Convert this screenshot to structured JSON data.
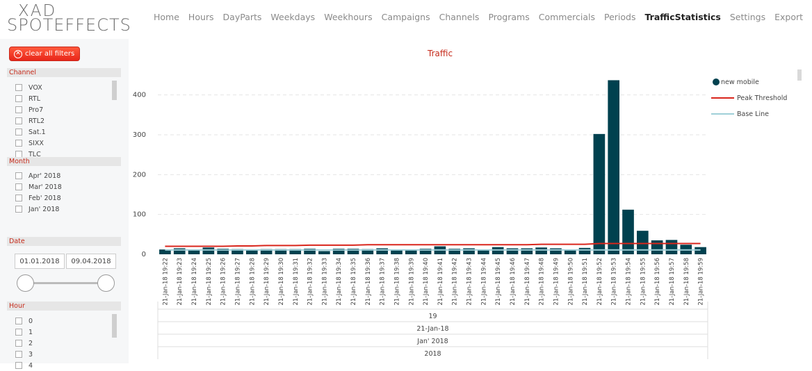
{
  "logo": {
    "top": "XAD",
    "bottom": "SPOTEFFECTS"
  },
  "nav": [
    {
      "label": "Home"
    },
    {
      "label": "Hours"
    },
    {
      "label": "DayParts"
    },
    {
      "label": "Weekdays"
    },
    {
      "label": "Weekhours"
    },
    {
      "label": "Campaigns"
    },
    {
      "label": "Channels"
    },
    {
      "label": "Programs"
    },
    {
      "label": "Commercials"
    },
    {
      "label": "Periods"
    },
    {
      "label": "TrafficStatistics",
      "active": true
    },
    {
      "label": "Settings"
    },
    {
      "label": "Export"
    }
  ],
  "sidebar": {
    "clear_label": "clear all filters",
    "channel_title": "Channel",
    "channels": [
      "VOX",
      "RTL",
      "Pro7",
      "RTL2",
      "Sat.1",
      "SIXX",
      "TLC"
    ],
    "month_title": "Month",
    "months": [
      "Apr' 2018",
      "Mar' 2018",
      "Feb' 2018",
      "Jan' 2018"
    ],
    "date_title": "Date",
    "date_from": "01.01.2018",
    "date_to": "09.04.2018",
    "hour_title": "Hour",
    "hours": [
      "0",
      "1",
      "2",
      "3",
      "4"
    ]
  },
  "chart_data": {
    "type": "bar",
    "title": "Traffic",
    "categories": [
      "21-Jan-18 19:22",
      "21-Jan-18 19:23",
      "21-Jan-18 19:24",
      "21-Jan-18 19:25",
      "21-Jan-18 19:26",
      "21-Jan-18 19:27",
      "21-Jan-18 19:28",
      "21-Jan-18 19:29",
      "21-Jan-18 19:30",
      "21-Jan-18 19:31",
      "21-Jan-18 19:32",
      "21-Jan-18 19:33",
      "21-Jan-18 19:34",
      "21-Jan-18 19:35",
      "21-Jan-18 19:36",
      "21-Jan-18 19:37",
      "21-Jan-18 19:38",
      "21-Jan-18 19:39",
      "21-Jan-18 19:40",
      "21-Jan-18 19:41",
      "21-Jan-18 19:42",
      "21-Jan-18 19:43",
      "21-Jan-18 19:44",
      "21-Jan-18 19:45",
      "21-Jan-18 19:46",
      "21-Jan-18 19:47",
      "21-Jan-18 19:48",
      "21-Jan-18 19:49",
      "21-Jan-18 19:50",
      "21-Jan-18 19:51",
      "21-Jan-18 19:52",
      "21-Jan-18 19:53",
      "21-Jan-18 19:54",
      "21-Jan-18 19:55",
      "21-Jan-18 19:56",
      "21-Jan-18 19:57",
      "21-Jan-18 19:58",
      "21-Jan-18 19:59"
    ],
    "series": [
      {
        "name": "new mobile",
        "kind": "bar",
        "color": "#00414f",
        "values": [
          12,
          15,
          11,
          17,
          14,
          13,
          11,
          13,
          13,
          13,
          14,
          8,
          14,
          14,
          13,
          15,
          12,
          10,
          14,
          20,
          14,
          15,
          12,
          18,
          15,
          15,
          17,
          15,
          12,
          16,
          302,
          437,
          112,
          59,
          35,
          36,
          24,
          18
        ]
      },
      {
        "name": "Peak Threshold",
        "kind": "line",
        "color": "#d9261c",
        "values": [
          20,
          20,
          20,
          20,
          20,
          21,
          21,
          22,
          22,
          22,
          23,
          23,
          23,
          23,
          24,
          24,
          24,
          24,
          24,
          24,
          24,
          24,
          24,
          24,
          24,
          24,
          25,
          25,
          25,
          25,
          27,
          27,
          27,
          27,
          27,
          27,
          27,
          27
        ]
      },
      {
        "name": "Base Line",
        "kind": "line",
        "color": "#9fd0d8",
        "values": [
          11,
          11,
          11,
          11,
          11,
          11,
          11,
          11,
          11,
          11,
          11,
          11,
          11,
          11,
          11,
          11,
          11,
          11,
          11,
          11,
          11,
          11,
          11,
          11,
          11,
          11,
          11,
          11,
          11,
          11,
          11,
          11,
          11,
          11,
          11,
          11,
          11,
          11
        ]
      }
    ],
    "ylim": [
      0,
      450
    ],
    "yticks": [
      0,
      100,
      200,
      300,
      400
    ],
    "grid": true,
    "legend_position": "top-right",
    "x_groups": [
      "19",
      "21-Jan-18",
      "Jan' 2018",
      "2018"
    ]
  }
}
